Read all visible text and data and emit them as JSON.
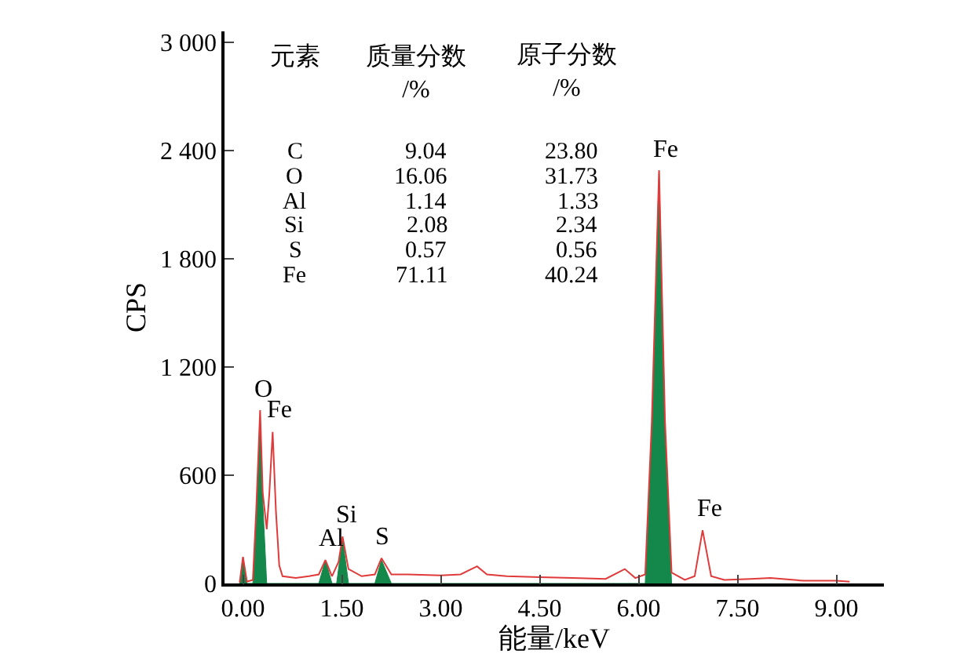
{
  "chart_data": {
    "type": "line",
    "xlabel": "能量/keV",
    "ylabel": "CPS",
    "xlim": [
      -0.28,
      9.72
    ],
    "ylim": [
      0,
      3060
    ],
    "xticks": [
      {
        "value": 0,
        "label": "0.00"
      },
      {
        "value": 1.5,
        "label": "1.50"
      },
      {
        "value": 3,
        "label": "3.00"
      },
      {
        "value": 4.5,
        "label": "4.50"
      },
      {
        "value": 6,
        "label": "6.00"
      },
      {
        "value": 7.5,
        "label": "7.50"
      },
      {
        "value": 9,
        "label": "9.00"
      }
    ],
    "yticks": [
      0,
      600,
      {
        "value": 1200,
        "label": "1 200"
      },
      {
        "value": 1800,
        "label": "1 800"
      },
      {
        "value": 2400,
        "label": "2 400"
      },
      {
        "value": 3000,
        "label": "3 000"
      }
    ],
    "marker": "none",
    "line_style": "solid",
    "series": [
      {
        "type": "area",
        "color": "#14874a",
        "x": [
          -0.05,
          0.0,
          0.06,
          0.15,
          0.2,
          0.26,
          0.3,
          0.36,
          1.15,
          1.25,
          1.35,
          1.42,
          1.51,
          1.6,
          2.0,
          2.1,
          2.25,
          6.1,
          6.2,
          6.31,
          6.4,
          6.5
        ],
        "values": [
          0,
          147,
          0,
          0,
          350,
          900,
          450,
          0,
          0,
          130,
          0,
          0,
          250,
          0,
          0,
          130,
          0,
          0,
          850,
          2290,
          850,
          0
        ]
      },
      {
        "color": "#e03a3a",
        "x": [
          -0.05,
          0.0,
          0.06,
          0.15,
          0.2,
          0.26,
          0.3,
          0.36,
          0.4,
          0.45,
          0.5,
          0.55,
          0.6,
          0.8,
          1.0,
          1.15,
          1.25,
          1.35,
          1.45,
          1.51,
          1.6,
          1.8,
          2.0,
          2.1,
          2.25,
          2.5,
          3.0,
          3.3,
          3.55,
          3.7,
          4.0,
          4.5,
          5.0,
          5.5,
          5.79,
          5.95,
          6.1,
          6.2,
          6.31,
          6.4,
          6.5,
          6.7,
          6.85,
          6.97,
          7.1,
          7.3,
          7.7,
          8.0,
          8.5,
          9.0,
          9.2
        ],
        "values": [
          5,
          147,
          10,
          20,
          400,
          960,
          500,
          300,
          500,
          840,
          400,
          100,
          40,
          30,
          40,
          50,
          130,
          40,
          120,
          260,
          80,
          40,
          50,
          140,
          50,
          50,
          45,
          50,
          95,
          50,
          40,
          35,
          30,
          25,
          80,
          30,
          50,
          900,
          2290,
          900,
          60,
          20,
          40,
          295,
          40,
          20,
          25,
          30,
          15,
          15,
          10
        ]
      }
    ],
    "annotations": [
      {
        "text": "O",
        "x": 0.26,
        "y": 960
      },
      {
        "text": "Fe",
        "x": 0.45,
        "y": 840
      },
      {
        "text": "Al",
        "x": 1.25,
        "y": 130
      },
      {
        "text": "Si",
        "x": 1.51,
        "y": 260
      },
      {
        "text": "S",
        "x": 2.1,
        "y": 140
      },
      {
        "text": "Fe",
        "x": 6.31,
        "y": 2290
      },
      {
        "text": "Fe",
        "x": 6.97,
        "y": 295
      },
      "元素",
      "质量分数\n/%",
      "原子分数\n/%",
      "C",
      "9.04",
      "23.80",
      "O",
      "16.06",
      "31.73",
      "Al",
      "1.14",
      "1.33",
      "Si",
      "2.08",
      "2.34",
      "S",
      "0.57",
      "0.56",
      "Fe",
      "71.11",
      "40.24"
    ]
  }
}
